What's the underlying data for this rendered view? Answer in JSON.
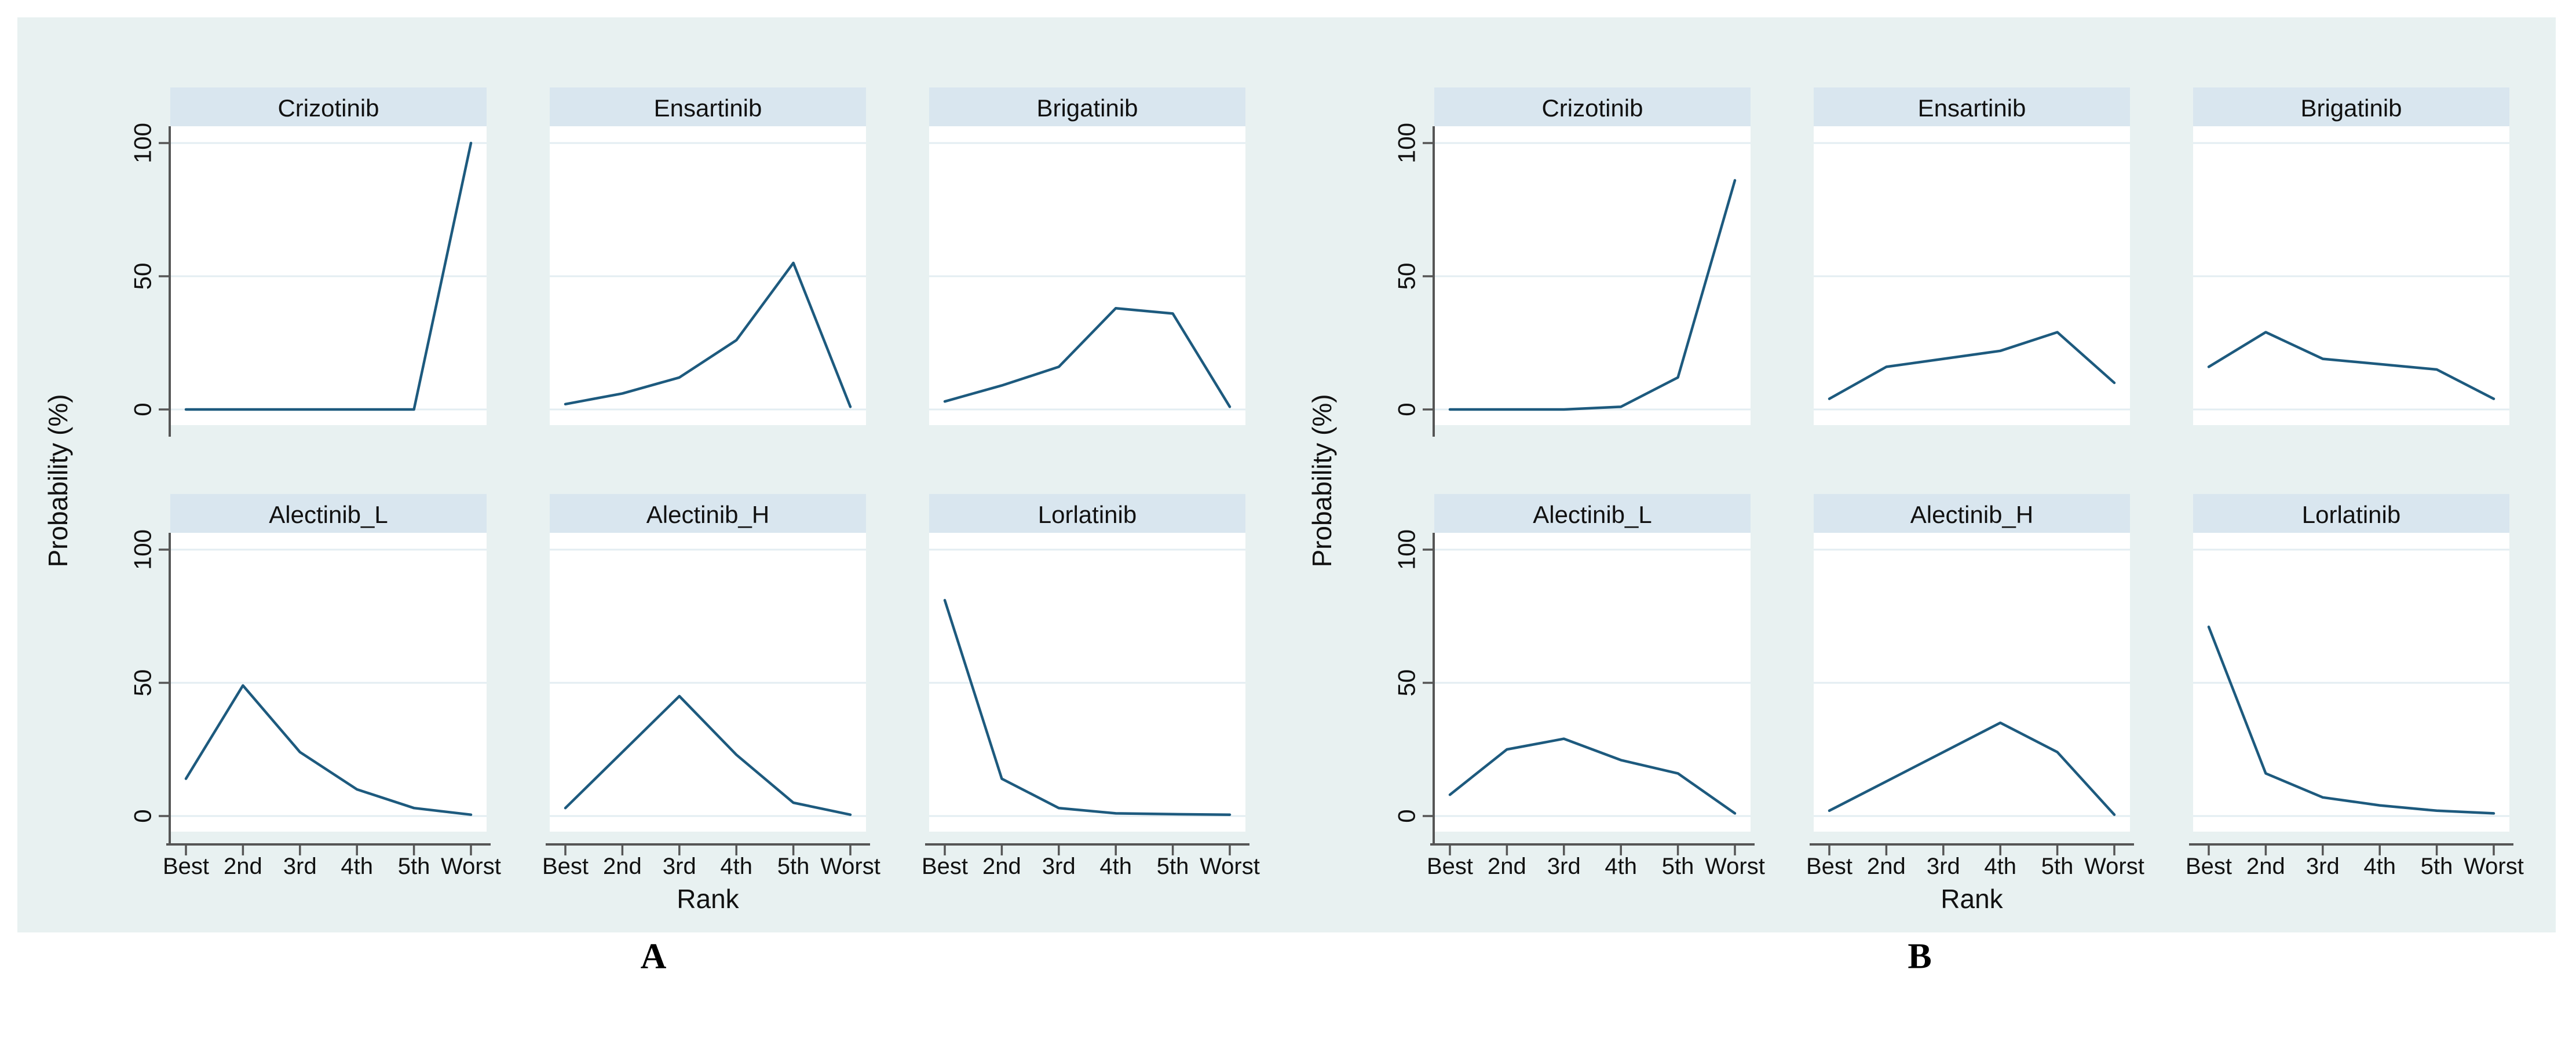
{
  "figure": {
    "colors": {
      "page_bg": "#ffffff",
      "figure_bg": "#e8f1f1",
      "strip_bg": "#d9e6ef",
      "plot_bg": "#ffffff",
      "grid": "#e3edf2",
      "line": "#1d5a7e",
      "axis": "#555555",
      "text": "#111111"
    },
    "captions": {
      "a": "A",
      "b": "B"
    }
  },
  "chart_data": [
    {
      "panel": "A",
      "type": "line",
      "layout": "2x3 small multiples (Stata rankogram), grid on, no legend",
      "x": [
        "Best",
        "2nd",
        "3rd",
        "4th",
        "5th",
        "Worst"
      ],
      "xlabel": "Rank",
      "ylabel": "Probability (%)",
      "ylim": [
        0,
        100
      ],
      "yticks": [
        0,
        50,
        100
      ],
      "series": [
        {
          "name": "Crizotinib",
          "values": [
            0,
            0,
            0,
            0,
            0,
            100
          ]
        },
        {
          "name": "Ensartinib",
          "values": [
            2,
            6,
            12,
            26,
            55,
            1
          ]
        },
        {
          "name": "Brigatinib",
          "values": [
            3,
            9,
            16,
            38,
            36,
            1
          ]
        },
        {
          "name": "Alectinib_L",
          "values": [
            14,
            49,
            24,
            10,
            3,
            0.5
          ]
        },
        {
          "name": "Alectinib_H",
          "values": [
            3,
            24,
            45,
            23,
            5,
            0.5
          ]
        },
        {
          "name": "Lorlatinib",
          "values": [
            81,
            14,
            3,
            1,
            0.7,
            0.5
          ]
        }
      ]
    },
    {
      "panel": "B",
      "type": "line",
      "layout": "2x3 small multiples (Stata rankogram), grid on, no legend",
      "x": [
        "Best",
        "2nd",
        "3rd",
        "4th",
        "5th",
        "Worst"
      ],
      "xlabel": "Rank",
      "ylabel": "Probability (%)",
      "ylim": [
        0,
        100
      ],
      "yticks": [
        0,
        50,
        100
      ],
      "series": [
        {
          "name": "Crizotinib",
          "values": [
            0,
            0,
            0,
            1,
            12,
            86
          ]
        },
        {
          "name": "Ensartinib",
          "values": [
            4,
            16,
            19,
            22,
            29,
            10
          ]
        },
        {
          "name": "Brigatinib",
          "values": [
            16,
            29,
            19,
            17,
            15,
            4
          ]
        },
        {
          "name": "Alectinib_L",
          "values": [
            8,
            25,
            29,
            21,
            16,
            1
          ]
        },
        {
          "name": "Alectinib_H",
          "values": [
            2,
            13,
            24,
            35,
            24,
            0.5
          ]
        },
        {
          "name": "Lorlatinib",
          "values": [
            71,
            16,
            7,
            4,
            2,
            1
          ]
        }
      ]
    }
  ]
}
